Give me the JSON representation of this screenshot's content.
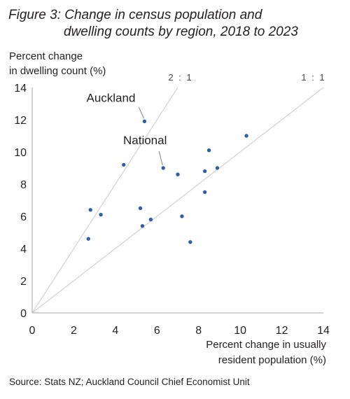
{
  "chart_data": {
    "type": "scatter",
    "title_line1": "Figure 3: Change in census population and",
    "title_line2": "dwelling counts by region, 2018 to 2023",
    "ylabel_line1": "Percent change",
    "ylabel_line2": "in dwelling count (%)",
    "xlabel_line1": "Percent change in usually",
    "xlabel_line2": "resident population (%)",
    "xlim": [
      0,
      14
    ],
    "ylim": [
      0,
      14
    ],
    "xticks": [
      0,
      2,
      4,
      6,
      8,
      10,
      12,
      14
    ],
    "yticks": [
      0,
      2,
      4,
      6,
      8,
      10,
      12,
      14
    ],
    "grid": false,
    "reference_lines": [
      {
        "label": "2 : 1",
        "slope": 2
      },
      {
        "label": "1 : 1",
        "slope": 1
      }
    ],
    "points": [
      {
        "x": 5.4,
        "y": 11.9
      },
      {
        "x": 10.3,
        "y": 11.0
      },
      {
        "x": 8.5,
        "y": 10.1
      },
      {
        "x": 4.4,
        "y": 9.2
      },
      {
        "x": 6.3,
        "y": 9.0
      },
      {
        "x": 8.9,
        "y": 9.0
      },
      {
        "x": 8.3,
        "y": 8.8
      },
      {
        "x": 7.0,
        "y": 8.6
      },
      {
        "x": 8.3,
        "y": 7.5
      },
      {
        "x": 2.8,
        "y": 6.4
      },
      {
        "x": 5.2,
        "y": 6.5
      },
      {
        "x": 3.3,
        "y": 6.1
      },
      {
        "x": 7.2,
        "y": 6.0
      },
      {
        "x": 5.7,
        "y": 5.8
      },
      {
        "x": 5.3,
        "y": 5.4
      },
      {
        "x": 2.7,
        "y": 4.6
      },
      {
        "x": 7.6,
        "y": 4.4
      }
    ],
    "annotations": [
      {
        "text": "Auckland",
        "x": 5.4,
        "y": 11.9
      },
      {
        "text": "National",
        "x": 6.3,
        "y": 9.0
      }
    ],
    "point_color": "#2e5fa8"
  },
  "source": "Source: Stats NZ; Auckland Council Chief Economist Unit"
}
